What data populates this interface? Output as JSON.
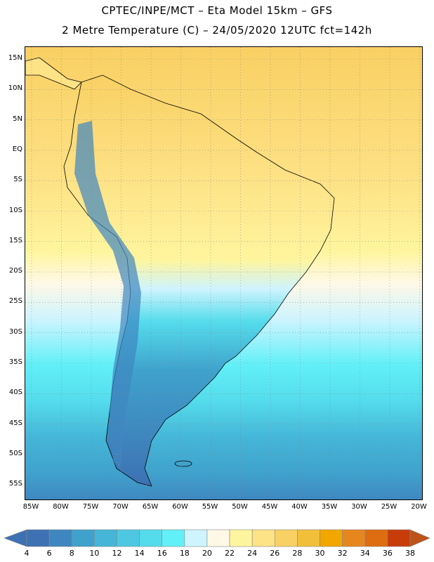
{
  "title": {
    "line1": "CPTEC/INPE/MCT –  Eta Model 15km – GFS",
    "line2": "2 Metre Temperature (C) – 24/05/2020 12UTC fct=142h"
  },
  "map": {
    "lat_labels": [
      "15N",
      "10N",
      "5N",
      "EQ",
      "5S",
      "10S",
      "15S",
      "20S",
      "25S",
      "30S",
      "35S",
      "40S",
      "45S",
      "50S",
      "55S"
    ],
    "lon_labels": [
      "85W",
      "80W",
      "75W",
      "70W",
      "65W",
      "60W",
      "55W",
      "50W",
      "45W",
      "40W",
      "35W",
      "30W",
      "25W",
      "20W"
    ]
  },
  "legend": {
    "values": [
      "4",
      "6",
      "8",
      "10",
      "12",
      "14",
      "16",
      "18",
      "20",
      "22",
      "24",
      "26",
      "28",
      "30",
      "32",
      "34",
      "36",
      "38"
    ],
    "colors": [
      "#3d71b3",
      "#3f86c0",
      "#3fa2cc",
      "#45b6d8",
      "#4ec8e2",
      "#54dcec",
      "#62f0f8",
      "#cef4fe",
      "#fff8e6",
      "#fff59e",
      "#fde286",
      "#f9d063",
      "#f1bf3a",
      "#f2a600",
      "#e8861e",
      "#dd6d10",
      "#c83c0a",
      "#bf5216"
    ]
  },
  "chart_data": {
    "type": "heatmap",
    "title": "2 Metre Temperature (C)",
    "subtitle": "CPTEC/INPE/MCT – Eta Model 15km – GFS, 24/05/2020 12UTC fct=142h",
    "units": "C",
    "xlim": [
      -85,
      -20
    ],
    "ylim": [
      -57,
      16
    ],
    "color_scale_min": 4,
    "color_scale_max": 38,
    "color_scale_step": 2
  }
}
